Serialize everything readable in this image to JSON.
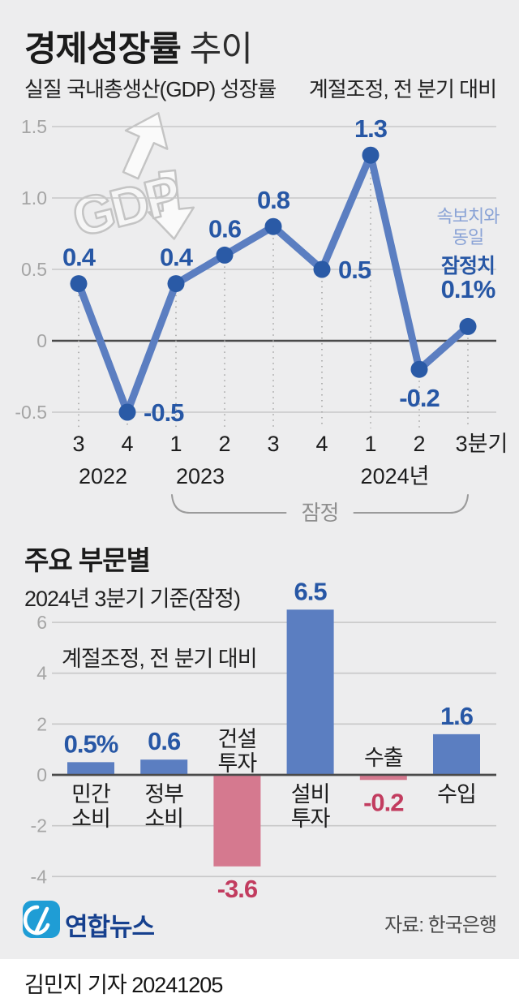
{
  "header": {
    "title_bold": "경제성장률",
    "title_light": " 추이",
    "subtitle_left": "실질 국내총생산(GDP) 성장률",
    "subtitle_right": "계절조정, 전 분기 대비"
  },
  "line_section": {
    "annotation_line1": "속보치와",
    "annotation_line2": "동일",
    "annotation_line3": "잠정치",
    "annotation_line4": "0.1%"
  },
  "bar_section": {
    "title": "주요 부문별",
    "subtitle": "2024년 3분기 기준(잠정)",
    "note": "계절조정, 전 분기 대비"
  },
  "footer": {
    "logo_text": "연합뉴스",
    "source": "자료: 한국은행",
    "byline": "김민지 기자 20241205"
  },
  "colors": {
    "background": "#ededee",
    "line": "#5b7ec1",
    "dot": "#2a5aa6",
    "label_blue": "#2757a5",
    "bar_blue": "#5b7ec1",
    "bar_pink": "#d5798f",
    "label_red": "#c23c5f",
    "annotation_light_blue": "#8aa3d6",
    "logo_blue": "#1f9dd5",
    "logo_navy": "#16408e"
  },
  "chart_data": [
    {
      "type": "line",
      "title": "실질 국내총생산(GDP) 성장률",
      "unit_note": "계절조정, 전 분기 대비",
      "x": [
        "3",
        "4",
        "1",
        "2",
        "3",
        "4",
        "1",
        "2",
        "3분기"
      ],
      "values": [
        0.4,
        -0.5,
        0.4,
        0.6,
        0.8,
        0.5,
        1.3,
        -0.2,
        0.1
      ],
      "point_labels": [
        "0.4",
        "-0.5",
        "0.4",
        "0.6",
        "0.8",
        "0.5",
        "1.3",
        "-0.2",
        ""
      ],
      "label_positions": [
        "above",
        "right",
        "above",
        "above",
        "above",
        "right",
        "above",
        "below",
        "none"
      ],
      "final_value_label": "0.1%",
      "yticks": [
        "1.5",
        "1.0",
        "0.5",
        "0",
        "-0.5"
      ],
      "ylim": [
        -0.5,
        1.5
      ],
      "grid": true,
      "year_groups": [
        {
          "label": "2022",
          "ticks": [
            0,
            1
          ]
        },
        {
          "label": "2023",
          "ticks": [
            2,
            3
          ]
        },
        {
          "label": "2024년",
          "ticks": [
            6,
            7
          ]
        }
      ],
      "provisional_bracket": {
        "label": "잠정",
        "from_tick": 2,
        "to_tick": 8
      }
    },
    {
      "type": "bar",
      "title": "주요 부문별",
      "subtitle": "2024년 3분기 기준(잠정)",
      "unit_note": "계절조정, 전 분기 대비",
      "categories": [
        "민간소비",
        "정부소비",
        "건설투자",
        "설비투자",
        "수출",
        "수입"
      ],
      "category_lines": [
        [
          "민간",
          "소비"
        ],
        [
          "정부",
          "소비"
        ],
        [
          "건설",
          "투자"
        ],
        [
          "설비",
          "투자"
        ],
        [
          "수출"
        ],
        [
          "수입"
        ]
      ],
      "values": [
        0.5,
        0.6,
        -3.6,
        6.5,
        -0.2,
        1.6
      ],
      "value_labels": [
        "0.5%",
        "0.6",
        "-3.6",
        "6.5",
        "-0.2",
        "1.6"
      ],
      "yticks": [
        "6",
        "4",
        "2",
        "0",
        "-2",
        "-4"
      ],
      "ylim": [
        -4,
        6
      ],
      "grid": true
    }
  ]
}
